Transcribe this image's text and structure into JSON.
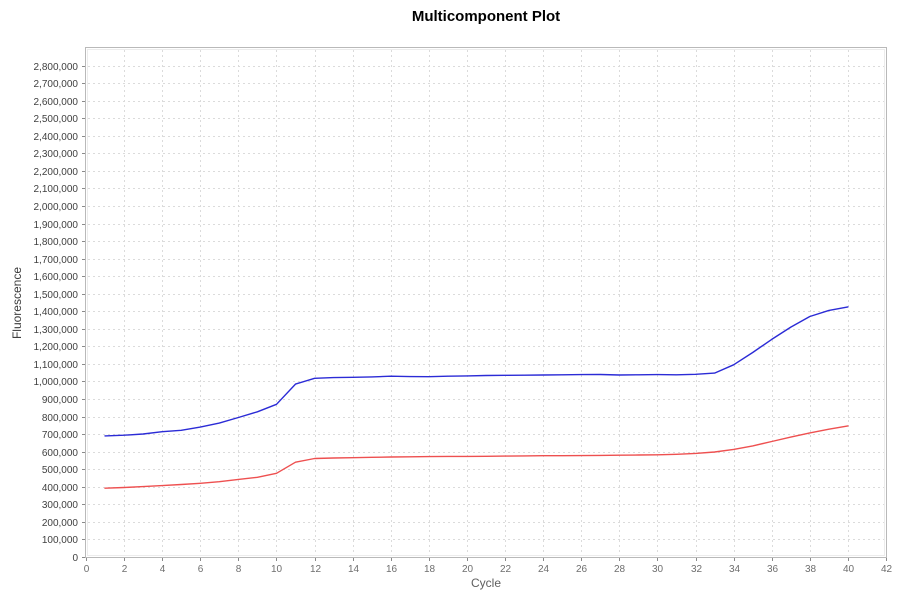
{
  "chart_data": {
    "type": "line",
    "title": "Multicomponent Plot",
    "xlabel": "Cycle",
    "ylabel": "Fluorescence",
    "xlim": [
      0,
      42
    ],
    "ylim": [
      0,
      2900000
    ],
    "grid": "dashed-both-axes",
    "legend": "none",
    "x_ticks": [
      0,
      2,
      4,
      6,
      8,
      10,
      12,
      14,
      16,
      18,
      20,
      22,
      24,
      26,
      28,
      30,
      32,
      34,
      36,
      38,
      40,
      42
    ],
    "x_tick_labels": [
      "0",
      "2",
      "4",
      "6",
      "8",
      "10",
      "12",
      "14",
      "16",
      "18",
      "20",
      "22",
      "24",
      "26",
      "28",
      "30",
      "32",
      "34",
      "36",
      "38",
      "40",
      "42"
    ],
    "y_ticks": [
      0,
      100000,
      200000,
      300000,
      400000,
      500000,
      600000,
      700000,
      800000,
      900000,
      1000000,
      1100000,
      1200000,
      1300000,
      1400000,
      1500000,
      1600000,
      1700000,
      1800000,
      1900000,
      2000000,
      2100000,
      2200000,
      2300000,
      2400000,
      2500000,
      2600000,
      2700000,
      2800000
    ],
    "y_tick_labels": [
      "0",
      "100,000",
      "200,000",
      "300,000",
      "400,000",
      "500,000",
      "600,000",
      "700,000",
      "800,000",
      "900,000",
      "1,000,000",
      "1,100,000",
      "1,200,000",
      "1,300,000",
      "1,400,000",
      "1,500,000",
      "1,600,000",
      "1,700,000",
      "1,800,000",
      "1,900,000",
      "2,000,000",
      "2,100,000",
      "2,200,000",
      "2,300,000",
      "2,400,000",
      "2,500,000",
      "2,600,000",
      "2,700,000",
      "2,800,000"
    ],
    "x": [
      1,
      2,
      3,
      4,
      5,
      6,
      7,
      8,
      9,
      10,
      11,
      12,
      13,
      14,
      15,
      16,
      17,
      18,
      19,
      20,
      21,
      22,
      23,
      24,
      25,
      26,
      27,
      28,
      29,
      30,
      31,
      32,
      33,
      34,
      35,
      36,
      37,
      38,
      39,
      40
    ],
    "series": [
      {
        "name": "blue-series",
        "color": "#2b2bd6",
        "values": [
          690000,
          694000,
          701000,
          714000,
          722000,
          740000,
          763000,
          795000,
          827000,
          870000,
          985000,
          1018000,
          1022000,
          1024000,
          1026000,
          1030000,
          1028000,
          1027000,
          1030000,
          1032000,
          1034000,
          1035000,
          1036000,
          1037000,
          1038000,
          1039000,
          1040000,
          1037000,
          1038000,
          1039000,
          1038000,
          1041000,
          1048000,
          1095000,
          1165000,
          1240000,
          1310000,
          1370000,
          1405000,
          1425000
        ]
      },
      {
        "name": "red-series",
        "color": "#ee5050",
        "values": [
          392000,
          396000,
          401000,
          407000,
          413000,
          420000,
          429000,
          442000,
          454000,
          477000,
          540000,
          561000,
          564000,
          566000,
          568000,
          570000,
          571000,
          572000,
          573000,
          573000,
          574000,
          575000,
          576000,
          577000,
          577000,
          578000,
          579000,
          580000,
          581000,
          582000,
          585000,
          590000,
          598000,
          613000,
          633000,
          658000,
          683000,
          707000,
          728000,
          747000
        ]
      }
    ]
  },
  "style": {
    "grid_color": "#dbdbdb",
    "border_outer_color": "#b9b9b9",
    "border_inner_color": "#ececec",
    "tick_mark_color": "#8a8a8a",
    "y_tick_text_color": "#3f3f3f",
    "x_tick_text_color": "#6e6e6e",
    "plot_background": "#ffffff"
  }
}
